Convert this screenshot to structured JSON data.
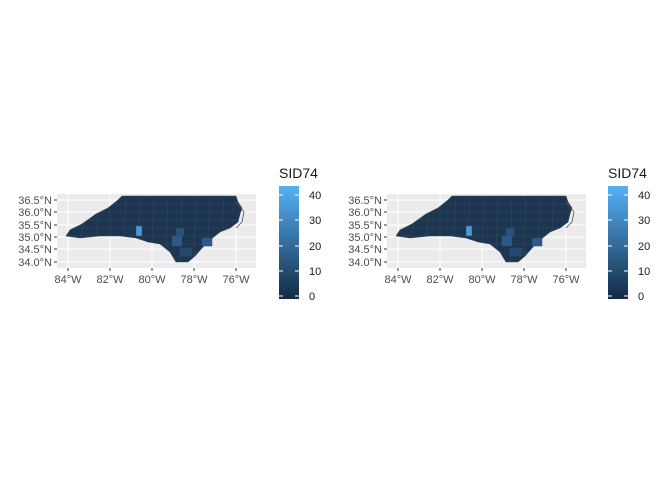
{
  "maps": [
    {
      "legend": {
        "title": "SID74",
        "ticks": [
          "0",
          "10",
          "20",
          "30",
          "40"
        ],
        "range": [
          0,
          44
        ]
      },
      "x_ticks": [
        "84°W",
        "82°W",
        "80°W",
        "78°W",
        "76°W"
      ],
      "y_ticks": [
        "36.5°N",
        "36.0°N",
        "35.5°N",
        "35.0°N",
        "34.5°N",
        "34.0°N"
      ]
    },
    {
      "legend": {
        "title": "SID74",
        "ticks": [
          "0",
          "10",
          "20",
          "30",
          "40"
        ],
        "range": [
          0,
          44
        ]
      },
      "x_ticks": [
        "84°W",
        "82°W",
        "80°W",
        "78°W",
        "76°W"
      ],
      "y_ticks": [
        "36.5°N",
        "36.0°N",
        "35.5°N",
        "35.0°N",
        "34.5°N",
        "34.0°N"
      ]
    }
  ],
  "colors": {
    "panel_bg": "#ebebeb",
    "grid": "#ffffff",
    "gradient_low": "#132b43",
    "gradient_high": "#56b1f7",
    "county_border": "#3a4a5a",
    "fill_dark": "#1c3550",
    "fill_mid": "#2b5b8c",
    "fill_bright": "#4a9ad8"
  }
}
